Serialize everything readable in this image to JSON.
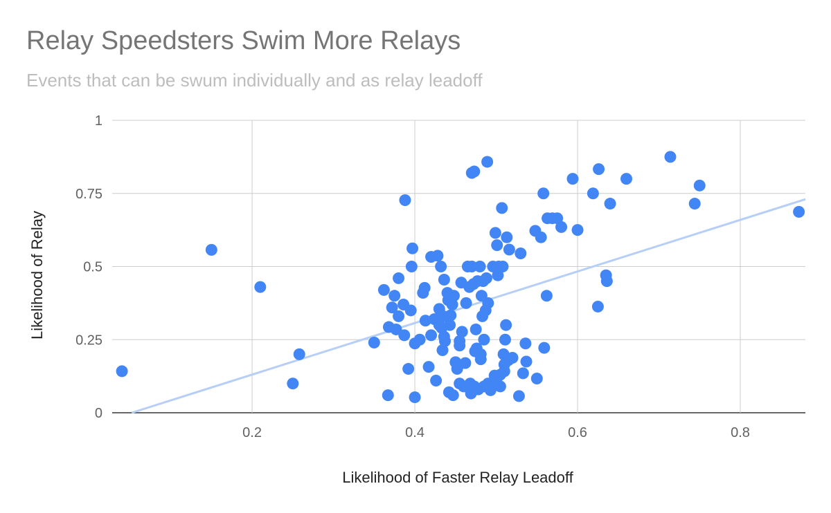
{
  "chart_data": {
    "type": "scatter",
    "title": "Relay Speedsters Swim More Relays",
    "subtitle": "Events that can be swum individually and as relay leadoff",
    "xlabel": "Likelihood of Faster Relay Leadoff",
    "ylabel": "Likelihood of Relay",
    "xlim": [
      0.028,
      0.88
    ],
    "ylim": [
      0,
      1
    ],
    "x_ticks": [
      0.2,
      0.4,
      0.6,
      0.8
    ],
    "x_tick_labels": [
      "0.2",
      "0.4",
      "0.6",
      "0.8"
    ],
    "y_ticks": [
      0,
      0.25,
      0.5,
      0.75,
      1
    ],
    "y_tick_labels": [
      "0",
      "0.25",
      "0.5",
      "0.75",
      "1"
    ],
    "grid": true,
    "point_color": "#4285f4",
    "trendline_color": "#b7cff6",
    "trendline": {
      "x1": 0.052,
      "y1": 0,
      "x2": 0.88,
      "y2": 0.73
    },
    "points": [
      [
        0.04,
        0.142
      ],
      [
        0.15,
        0.557
      ],
      [
        0.21,
        0.43
      ],
      [
        0.25,
        0.1
      ],
      [
        0.258,
        0.2
      ],
      [
        0.35,
        0.24
      ],
      [
        0.362,
        0.42
      ],
      [
        0.367,
        0.06
      ],
      [
        0.368,
        0.293
      ],
      [
        0.372,
        0.36
      ],
      [
        0.375,
        0.4
      ],
      [
        0.377,
        0.285
      ],
      [
        0.38,
        0.33
      ],
      [
        0.38,
        0.46
      ],
      [
        0.386,
        0.37
      ],
      [
        0.387,
        0.265
      ],
      [
        0.388,
        0.727
      ],
      [
        0.392,
        0.15
      ],
      [
        0.395,
        0.35
      ],
      [
        0.396,
        0.5
      ],
      [
        0.397,
        0.562
      ],
      [
        0.4,
        0.237
      ],
      [
        0.4,
        0.053
      ],
      [
        0.406,
        0.25
      ],
      [
        0.41,
        0.41
      ],
      [
        0.412,
        0.427
      ],
      [
        0.413,
        0.315
      ],
      [
        0.417,
        0.157
      ],
      [
        0.42,
        0.533
      ],
      [
        0.42,
        0.265
      ],
      [
        0.424,
        0.32
      ],
      [
        0.426,
        0.11
      ],
      [
        0.428,
        0.537
      ],
      [
        0.43,
        0.355
      ],
      [
        0.43,
        0.3
      ],
      [
        0.432,
        0.5
      ],
      [
        0.433,
        0.29
      ],
      [
        0.434,
        0.214
      ],
      [
        0.435,
        0.33
      ],
      [
        0.436,
        0.455
      ],
      [
        0.436,
        0.26
      ],
      [
        0.437,
        0.245
      ],
      [
        0.44,
        0.41
      ],
      [
        0.441,
        0.385
      ],
      [
        0.442,
        0.07
      ],
      [
        0.443,
        0.3
      ],
      [
        0.444,
        0.333
      ],
      [
        0.445,
        0.4
      ],
      [
        0.446,
        0.37
      ],
      [
        0.447,
        0.06
      ],
      [
        0.448,
        0.4
      ],
      [
        0.45,
        0.173
      ],
      [
        0.452,
        0.15
      ],
      [
        0.453,
        0.16
      ],
      [
        0.455,
        0.23
      ],
      [
        0.455,
        0.245
      ],
      [
        0.455,
        0.1
      ],
      [
        0.457,
        0.445
      ],
      [
        0.458,
        0.277
      ],
      [
        0.46,
        0.09
      ],
      [
        0.462,
        0.17
      ],
      [
        0.463,
        0.375
      ],
      [
        0.465,
        0.5
      ],
      [
        0.467,
        0.43
      ],
      [
        0.468,
        0.1
      ],
      [
        0.469,
        0.066
      ],
      [
        0.47,
        0.5
      ],
      [
        0.47,
        0.82
      ],
      [
        0.473,
        0.825
      ],
      [
        0.472,
        0.44
      ],
      [
        0.473,
        0.09
      ],
      [
        0.474,
        0.21
      ],
      [
        0.475,
        0.285
      ],
      [
        0.476,
        0.22
      ],
      [
        0.477,
        0.45
      ],
      [
        0.478,
        0.08
      ],
      [
        0.48,
        0.5
      ],
      [
        0.481,
        0.2
      ],
      [
        0.481,
        0.183
      ],
      [
        0.482,
        0.4
      ],
      [
        0.483,
        0.33
      ],
      [
        0.484,
        0.45
      ],
      [
        0.485,
        0.25
      ],
      [
        0.485,
        0.09
      ],
      [
        0.487,
        0.35
      ],
      [
        0.488,
        0.46
      ],
      [
        0.489,
        0.858
      ],
      [
        0.49,
        0.1
      ],
      [
        0.49,
        0.375
      ],
      [
        0.493,
        0.077
      ],
      [
        0.495,
        0.095
      ],
      [
        0.496,
        0.5
      ],
      [
        0.498,
        0.127
      ],
      [
        0.499,
        0.615
      ],
      [
        0.5,
        0.11
      ],
      [
        0.501,
        0.573
      ],
      [
        0.502,
        0.47
      ],
      [
        0.503,
        0.5
      ],
      [
        0.505,
        0.09
      ],
      [
        0.505,
        0.13
      ],
      [
        0.507,
        0.7
      ],
      [
        0.508,
        0.5
      ],
      [
        0.509,
        0.2
      ],
      [
        0.51,
        0.165
      ],
      [
        0.51,
        0.142
      ],
      [
        0.511,
        0.25
      ],
      [
        0.512,
        0.3
      ],
      [
        0.513,
        0.6
      ],
      [
        0.515,
        0.18
      ],
      [
        0.516,
        0.558
      ],
      [
        0.52,
        0.188
      ],
      [
        0.528,
        0.057
      ],
      [
        0.53,
        0.545
      ],
      [
        0.533,
        0.135
      ],
      [
        0.536,
        0.237
      ],
      [
        0.537,
        0.175
      ],
      [
        0.548,
        0.622
      ],
      [
        0.55,
        0.117
      ],
      [
        0.555,
        0.6
      ],
      [
        0.558,
        0.75
      ],
      [
        0.559,
        0.222
      ],
      [
        0.562,
        0.4
      ],
      [
        0.563,
        0.665
      ],
      [
        0.569,
        0.665
      ],
      [
        0.575,
        0.665
      ],
      [
        0.58,
        0.635
      ],
      [
        0.594,
        0.8
      ],
      [
        0.6,
        0.625
      ],
      [
        0.619,
        0.75
      ],
      [
        0.625,
        0.363
      ],
      [
        0.626,
        0.833
      ],
      [
        0.635,
        0.47
      ],
      [
        0.636,
        0.45
      ],
      [
        0.64,
        0.715
      ],
      [
        0.66,
        0.8
      ],
      [
        0.714,
        0.875
      ],
      [
        0.744,
        0.715
      ],
      [
        0.75,
        0.777
      ],
      [
        0.872,
        0.687
      ]
    ]
  }
}
